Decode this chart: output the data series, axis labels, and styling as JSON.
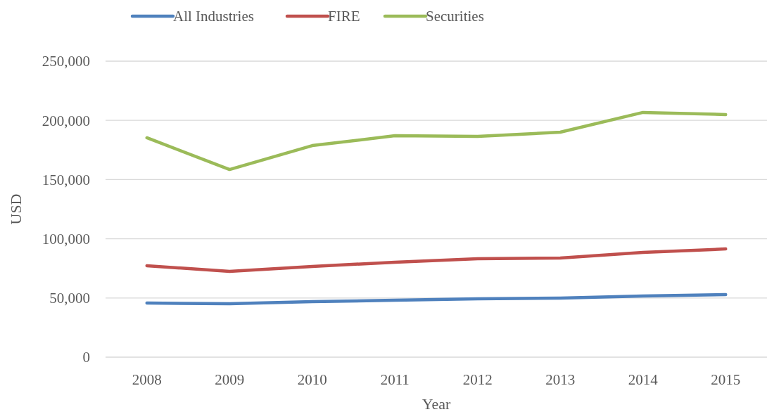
{
  "chart_data": {
    "type": "line",
    "xlabel": "Year",
    "ylabel": "USD",
    "categories": [
      "2008",
      "2009",
      "2010",
      "2011",
      "2012",
      "2013",
      "2014",
      "2015"
    ],
    "series": [
      {
        "name": "All Industries",
        "color": "#4f81bd",
        "values": [
          45700,
          45100,
          46900,
          48100,
          49300,
          49900,
          51700,
          52900
        ]
      },
      {
        "name": "FIRE",
        "color": "#c0504d",
        "values": [
          77200,
          72400,
          76600,
          80200,
          83100,
          83700,
          88500,
          91400
        ]
      },
      {
        "name": "Securities",
        "color": "#9bbb59",
        "values": [
          185300,
          158500,
          178700,
          187000,
          186500,
          190000,
          206700,
          204900
        ]
      }
    ],
    "ylim": [
      0,
      250000
    ],
    "yticks": [
      {
        "value": 0,
        "label": "0"
      },
      {
        "value": 50000,
        "label": "50,000"
      },
      {
        "value": 100000,
        "label": "100,000"
      },
      {
        "value": 150000,
        "label": "150,000"
      },
      {
        "value": 200000,
        "label": "200,000"
      },
      {
        "value": 250000,
        "label": "250,000"
      }
    ],
    "grid": "y",
    "legend": "top",
    "marker": "none",
    "line_style": "solid"
  }
}
